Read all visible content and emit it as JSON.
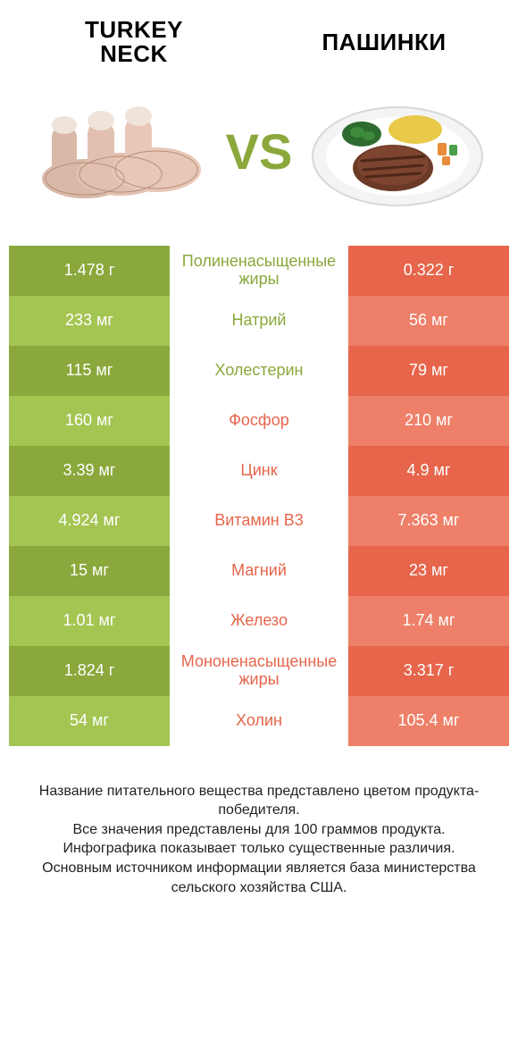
{
  "header": {
    "left_line1": "TURKEY",
    "left_line2": "NECK",
    "right": "ПАШИНКИ",
    "vs": "VS"
  },
  "colors": {
    "green_dark": "#8aa83b",
    "green_light": "#a5c553",
    "orange_dark": "#e6654b",
    "orange_light": "#ee7f68",
    "text_dark": "#222222",
    "white": "#ffffff"
  },
  "rows": [
    {
      "left": "1.478 г",
      "label": "Полиненасыщенные жиры",
      "right": "0.322 г",
      "winner": "left"
    },
    {
      "left": "233 мг",
      "label": "Натрий",
      "right": "56 мг",
      "winner": "left"
    },
    {
      "left": "115 мг",
      "label": "Холестерин",
      "right": "79 мг",
      "winner": "left"
    },
    {
      "left": "160 мг",
      "label": "Фосфор",
      "right": "210 мг",
      "winner": "right"
    },
    {
      "left": "3.39 мг",
      "label": "Цинк",
      "right": "4.9 мг",
      "winner": "right"
    },
    {
      "left": "4.924 мг",
      "label": "Витамин B3",
      "right": "7.363 мг",
      "winner": "right"
    },
    {
      "left": "15 мг",
      "label": "Магний",
      "right": "23 мг",
      "winner": "right"
    },
    {
      "left": "1.01 мг",
      "label": "Железо",
      "right": "1.74 мг",
      "winner": "right"
    },
    {
      "left": "1.824 г",
      "label": "Мононенасыщенные жиры",
      "right": "3.317 г",
      "winner": "right"
    },
    {
      "left": "54 мг",
      "label": "Холин",
      "right": "105.4 мг",
      "winner": "right"
    }
  ],
  "footer": {
    "l1": "Название питательного вещества представлено цветом продукта-победителя.",
    "l2": "Все значения представлены для 100 граммов продукта.",
    "l3": "Инфографика показывает только существенные различия.",
    "l4": "Основным источником информации является база министерства сельского хозяйства США."
  }
}
